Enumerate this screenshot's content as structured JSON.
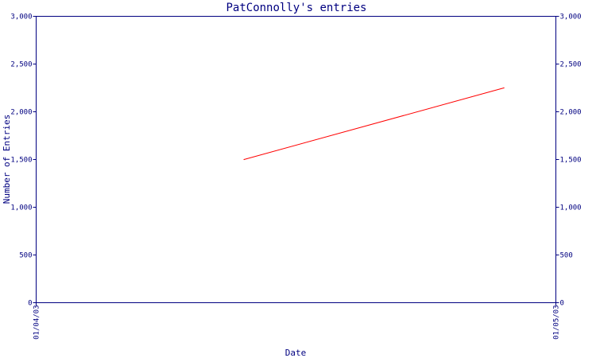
{
  "chart_data": {
    "type": "line",
    "title": "PatConnolly's entries",
    "xlabel": "Date",
    "ylabel": "Number of Entries",
    "x_tick_labels": [
      "01/04/03",
      "01/05/03"
    ],
    "x_range": [
      "01/04/03",
      "01/05/03"
    ],
    "ylim": [
      0,
      3000
    ],
    "y_tick_labels": [
      "0",
      "500",
      "1,000",
      "1,500",
      "2,000",
      "2,500",
      "3,000"
    ],
    "y_tick_values": [
      0,
      500,
      1000,
      1500,
      2000,
      2500,
      3000
    ],
    "grid": false,
    "series": [
      {
        "color": "#ff0000",
        "points": [
          {
            "x": "01/04/15",
            "y": 1500
          },
          {
            "x": "01/04/30",
            "y": 2250
          }
        ]
      }
    ],
    "axis_color": "#000080"
  }
}
